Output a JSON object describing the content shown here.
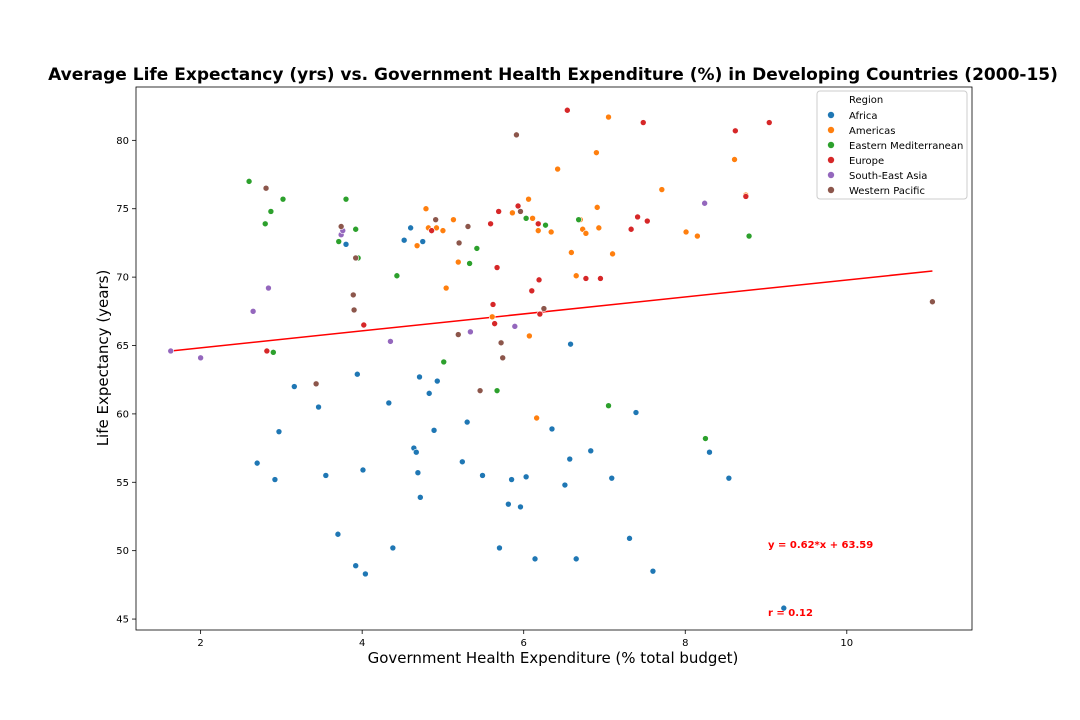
{
  "chart_data": {
    "type": "scatter",
    "title": "Average Life Expectancy (yrs) vs. Government Health Expenditure (%) in Developing Countries (2000-15)",
    "xlabel": "Government Health Expenditure (% total budget)",
    "ylabel": "Life Expectancy (years)",
    "xlim": [
      1.2,
      11.55
    ],
    "ylim": [
      44.2,
      83.9
    ],
    "xticks": [
      2,
      4,
      6,
      8,
      10
    ],
    "yticks": [
      45,
      50,
      55,
      60,
      65,
      70,
      75,
      80
    ],
    "legend": {
      "title": "Region",
      "position": "top-right"
    },
    "series": [
      {
        "name": "Africa",
        "color": "#1f77b4",
        "points": [
          [
            2.7,
            56.4
          ],
          [
            2.92,
            55.2
          ],
          [
            2.97,
            58.7
          ],
          [
            3.16,
            62.0
          ],
          [
            3.46,
            60.5
          ],
          [
            3.55,
            55.5
          ],
          [
            3.7,
            51.2
          ],
          [
            3.92,
            48.9
          ],
          [
            3.94,
            62.9
          ],
          [
            4.01,
            55.9
          ],
          [
            4.04,
            48.3
          ],
          [
            4.33,
            60.8
          ],
          [
            4.38,
            50.2
          ],
          [
            4.6,
            73.6
          ],
          [
            4.64,
            57.5
          ],
          [
            4.67,
            57.2
          ],
          [
            4.69,
            55.7
          ],
          [
            4.71,
            62.7
          ],
          [
            4.72,
            53.9
          ],
          [
            4.75,
            72.6
          ],
          [
            4.83,
            61.5
          ],
          [
            4.89,
            58.8
          ],
          [
            4.93,
            62.4
          ],
          [
            5.24,
            56.5
          ],
          [
            5.3,
            59.4
          ],
          [
            5.49,
            55.5
          ],
          [
            5.7,
            50.2
          ],
          [
            5.81,
            53.4
          ],
          [
            5.85,
            55.2
          ],
          [
            5.96,
            53.2
          ],
          [
            6.03,
            55.4
          ],
          [
            6.14,
            49.4
          ],
          [
            6.35,
            58.9
          ],
          [
            6.51,
            54.8
          ],
          [
            6.57,
            56.7
          ],
          [
            6.58,
            65.1
          ],
          [
            6.65,
            49.4
          ],
          [
            6.83,
            57.3
          ],
          [
            7.09,
            55.3
          ],
          [
            7.31,
            50.9
          ],
          [
            7.39,
            60.1
          ],
          [
            7.6,
            48.5
          ],
          [
            8.3,
            57.2
          ],
          [
            8.54,
            55.3
          ],
          [
            9.22,
            45.8
          ],
          [
            4.52,
            72.7
          ],
          [
            3.8,
            72.4
          ]
        ]
      },
      {
        "name": "Americas",
        "color": "#ff7f0e",
        "points": [
          [
            4.68,
            72.3
          ],
          [
            4.79,
            75.0
          ],
          [
            4.82,
            73.6
          ],
          [
            4.92,
            73.6
          ],
          [
            5.0,
            73.4
          ],
          [
            5.04,
            69.2
          ],
          [
            5.13,
            74.2
          ],
          [
            5.19,
            71.1
          ],
          [
            5.61,
            67.1
          ],
          [
            5.86,
            74.7
          ],
          [
            6.06,
            75.7
          ],
          [
            6.07,
            65.7
          ],
          [
            6.11,
            74.3
          ],
          [
            6.16,
            59.7
          ],
          [
            6.18,
            73.4
          ],
          [
            6.34,
            73.3
          ],
          [
            6.42,
            77.9
          ],
          [
            6.59,
            71.8
          ],
          [
            6.65,
            70.1
          ],
          [
            6.7,
            74.2
          ],
          [
            6.73,
            73.5
          ],
          [
            6.77,
            73.2
          ],
          [
            6.9,
            79.1
          ],
          [
            6.91,
            75.1
          ],
          [
            6.93,
            73.6
          ],
          [
            7.05,
            81.7
          ],
          [
            7.1,
            71.7
          ],
          [
            7.71,
            76.4
          ],
          [
            8.01,
            73.3
          ],
          [
            8.15,
            73.0
          ],
          [
            8.61,
            78.6
          ],
          [
            8.75,
            76.0
          ]
        ]
      },
      {
        "name": "Eastern Mediterranean",
        "color": "#2ca02c",
        "points": [
          [
            2.6,
            77.0
          ],
          [
            2.8,
            73.9
          ],
          [
            2.87,
            74.8
          ],
          [
            2.9,
            64.5
          ],
          [
            3.02,
            75.7
          ],
          [
            3.71,
            72.6
          ],
          [
            3.8,
            75.7
          ],
          [
            3.92,
            73.5
          ],
          [
            3.95,
            71.4
          ],
          [
            4.43,
            70.1
          ],
          [
            5.01,
            63.8
          ],
          [
            5.33,
            71.0
          ],
          [
            5.42,
            72.1
          ],
          [
            5.67,
            61.7
          ],
          [
            6.03,
            74.3
          ],
          [
            6.27,
            73.8
          ],
          [
            6.68,
            74.2
          ],
          [
            7.05,
            60.6
          ],
          [
            8.25,
            58.2
          ],
          [
            8.79,
            73.0
          ]
        ]
      },
      {
        "name": "Europe",
        "color": "#d62728",
        "points": [
          [
            2.82,
            64.6
          ],
          [
            4.02,
            66.5
          ],
          [
            4.86,
            73.4
          ],
          [
            5.59,
            73.9
          ],
          [
            5.62,
            68.0
          ],
          [
            5.64,
            66.6
          ],
          [
            5.67,
            70.7
          ],
          [
            5.69,
            74.8
          ],
          [
            5.93,
            75.2
          ],
          [
            6.1,
            69.0
          ],
          [
            6.18,
            73.9
          ],
          [
            6.19,
            69.8
          ],
          [
            6.2,
            67.3
          ],
          [
            6.54,
            82.2
          ],
          [
            6.77,
            69.9
          ],
          [
            6.95,
            69.9
          ],
          [
            7.33,
            73.5
          ],
          [
            7.41,
            74.4
          ],
          [
            7.48,
            81.3
          ],
          [
            7.53,
            74.1
          ],
          [
            8.62,
            80.7
          ],
          [
            8.75,
            75.9
          ],
          [
            9.04,
            81.3
          ]
        ]
      },
      {
        "name": "South-East Asia",
        "color": "#9467bd",
        "points": [
          [
            1.63,
            64.6
          ],
          [
            2.0,
            64.1
          ],
          [
            2.65,
            67.5
          ],
          [
            2.84,
            69.2
          ],
          [
            3.74,
            73.1
          ],
          [
            3.76,
            73.4
          ],
          [
            4.35,
            65.3
          ],
          [
            5.34,
            66.0
          ],
          [
            5.89,
            66.4
          ],
          [
            8.24,
            75.4
          ]
        ]
      },
      {
        "name": "Western Pacific",
        "color": "#8c564b",
        "points": [
          [
            2.81,
            76.5
          ],
          [
            3.43,
            62.2
          ],
          [
            3.74,
            73.7
          ],
          [
            3.89,
            68.7
          ],
          [
            3.9,
            67.6
          ],
          [
            3.92,
            71.4
          ],
          [
            4.91,
            74.2
          ],
          [
            5.19,
            65.8
          ],
          [
            5.2,
            72.5
          ],
          [
            5.31,
            73.7
          ],
          [
            5.46,
            61.7
          ],
          [
            5.72,
            65.2
          ],
          [
            5.74,
            64.1
          ],
          [
            5.91,
            80.4
          ],
          [
            5.96,
            74.8
          ],
          [
            6.25,
            67.7
          ],
          [
            11.06,
            68.2
          ]
        ]
      }
    ],
    "fit": {
      "slope": 0.62,
      "intercept": 63.59,
      "color": "#ff0000",
      "x_range": [
        1.63,
        11.06
      ]
    },
    "annotations": {
      "equation": "y = 0.62*x + 63.59",
      "r": "r = 0.12"
    }
  }
}
